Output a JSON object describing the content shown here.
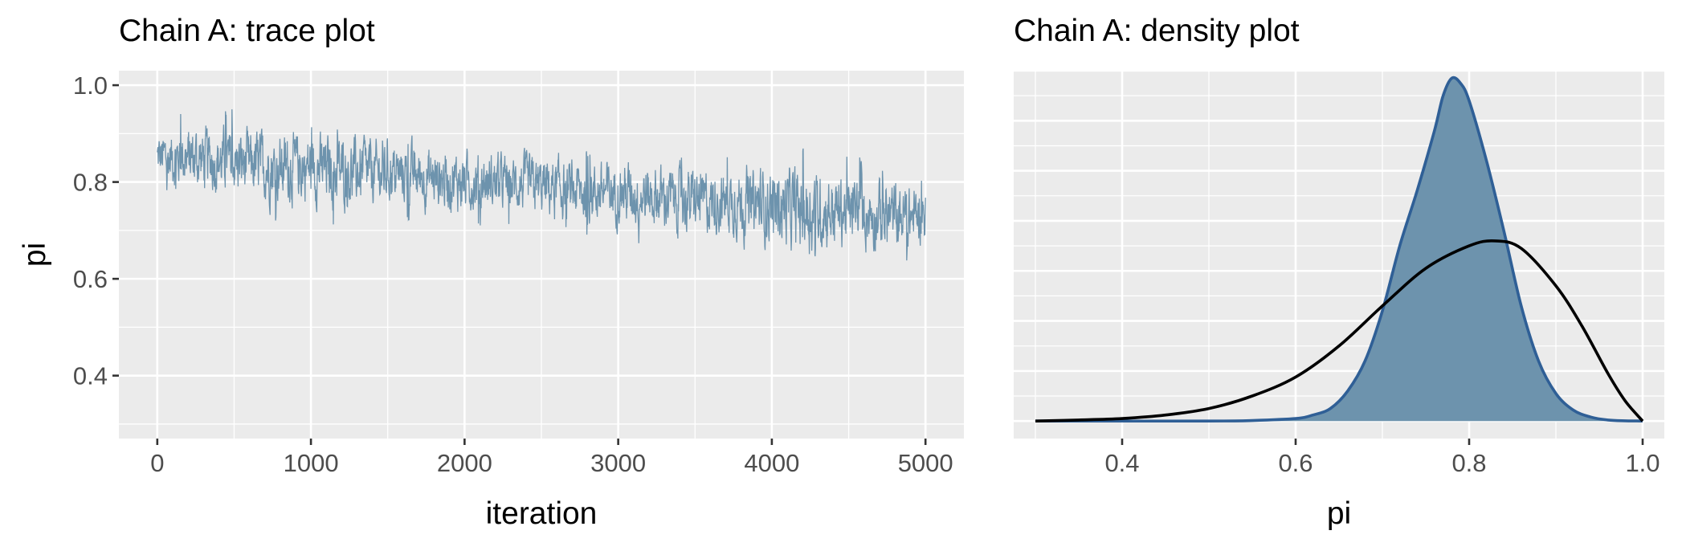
{
  "chart_data": [
    {
      "type": "line",
      "title": "Chain A: trace plot",
      "xlabel": "iteration",
      "ylabel": "pi",
      "xlim": [
        -250,
        5250
      ],
      "ylim": [
        0.27,
        1.03
      ],
      "x_ticks": [
        0,
        1000,
        2000,
        3000,
        4000,
        5000
      ],
      "x_tick_labels": [
        "0",
        "1000",
        "2000",
        "3000",
        "4000",
        "5000"
      ],
      "y_ticks": [
        0.4,
        0.6,
        0.8,
        1.0
      ],
      "y_tick_labels": [
        "0.4",
        "0.6",
        "0.8",
        "1.0"
      ],
      "grid": true,
      "series": [
        {
          "color": "#6d93ad",
          "x": [
            0,
            250,
            500,
            750,
            1000,
            1250,
            1500,
            1750,
            2000,
            2250,
            2500,
            2750,
            3000,
            3250,
            3500,
            3750,
            4000,
            4250,
            4500,
            4750,
            5000
          ],
          "mean": [
            0.85,
            0.85,
            0.84,
            0.83,
            0.83,
            0.82,
            0.82,
            0.81,
            0.8,
            0.8,
            0.79,
            0.78,
            0.78,
            0.77,
            0.76,
            0.76,
            0.75,
            0.74,
            0.74,
            0.73,
            0.73
          ],
          "low": [
            0.78,
            0.77,
            0.76,
            0.72,
            0.71,
            0.7,
            0.71,
            0.72,
            0.7,
            0.71,
            0.7,
            0.69,
            0.67,
            0.67,
            0.66,
            0.67,
            0.61,
            0.64,
            0.66,
            0.62,
            0.64
          ],
          "high": [
            0.93,
            0.96,
            0.95,
            0.93,
            0.92,
            0.91,
            0.89,
            0.9,
            0.88,
            0.87,
            0.88,
            0.87,
            0.86,
            0.86,
            0.85,
            0.86,
            0.84,
            0.89,
            0.86,
            0.84,
            0.8
          ]
        }
      ]
    },
    {
      "type": "area",
      "title": "Chain A: density plot",
      "xlabel": "pi",
      "ylabel": "",
      "xlim": [
        0.275,
        1.025
      ],
      "ylim": [
        0,
        7.0
      ],
      "x_ticks": [
        0.4,
        0.6,
        0.8,
        1.0
      ],
      "x_tick_labels": [
        "0.4",
        "0.6",
        "0.8",
        "1.0"
      ],
      "y_ticks": [
        0,
        1,
        2,
        3,
        4,
        5,
        6,
        7
      ],
      "grid": true,
      "series": [
        {
          "style": "filled-density",
          "fill": "#6d93ad",
          "stroke": "#2f5f96",
          "x": [
            0.3,
            0.5,
            0.55,
            0.6,
            0.62,
            0.64,
            0.66,
            0.68,
            0.7,
            0.72,
            0.74,
            0.76,
            0.77,
            0.78,
            0.79,
            0.8,
            0.82,
            0.84,
            0.86,
            0.88,
            0.9,
            0.92,
            0.94,
            0.96,
            0.98,
            1.0
          ],
          "y": [
            0,
            0,
            0.01,
            0.05,
            0.12,
            0.25,
            0.6,
            1.2,
            2.2,
            3.5,
            4.6,
            5.8,
            6.5,
            6.85,
            6.75,
            6.4,
            5.2,
            3.8,
            2.3,
            1.2,
            0.55,
            0.22,
            0.08,
            0.02,
            0.005,
            0
          ]
        },
        {
          "style": "line",
          "stroke": "#000000",
          "x": [
            0.3,
            0.35,
            0.4,
            0.45,
            0.5,
            0.55,
            0.6,
            0.65,
            0.7,
            0.75,
            0.8,
            0.83,
            0.86,
            0.9,
            0.93,
            0.96,
            0.98,
            1.0
          ],
          "y": [
            0,
            0.02,
            0.05,
            0.12,
            0.25,
            0.5,
            0.88,
            1.5,
            2.3,
            3.05,
            3.5,
            3.6,
            3.45,
            2.7,
            1.9,
            0.95,
            0.4,
            0
          ]
        }
      ]
    }
  ]
}
